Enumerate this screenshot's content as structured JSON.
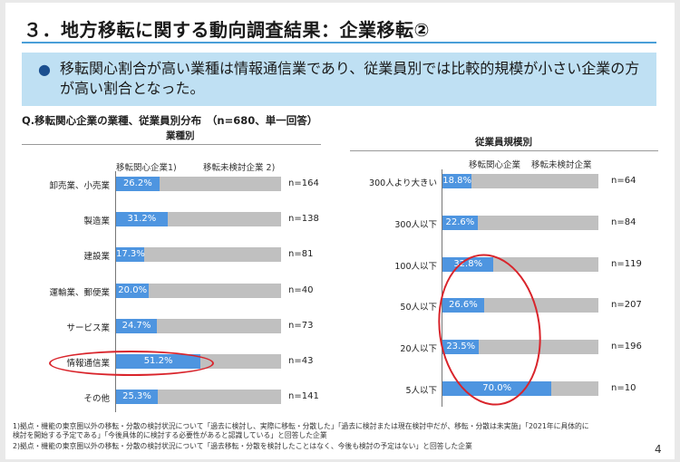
{
  "slide": {
    "title": "３．地方移転に関する動向調査結果：企業移転②",
    "summary_bullet": "●",
    "summary": "移転関心割合が高い業種は情報通信業であり、従業員別では比較的規模が小さい企業の方が高い割合となった。",
    "question": "Q.移転関心企業の業種、従業員別分布　（n=680、単一回答）",
    "footnote1a": "1)拠点・機能の東京圏以外の移転・分散の検討状況について「過去に検討し、実際に移転・分散した」「過去に検討または現在検討中だが、移転・分散は未実施」「2021年に具体的に",
    "footnote1b": "検討を開始する予定である」「今後具体的に検討する必要性があると認識している」と回答した企業",
    "footnote2": "2)拠点・機能の東京圏以外の移転・分散の検討状況について「過去移転・分散を検討したことはなく、今後も検討の予定はない」と回答した企業",
    "page_number": "4"
  },
  "colors": {
    "interested": "#4e95e0",
    "not_considered": "#c0c0c0",
    "highlight": "#d9242b"
  },
  "chart_data": [
    {
      "type": "bar",
      "stacked": "100%",
      "orientation": "horizontal",
      "title": "業種別",
      "legend": [
        "移転関心企業1)",
        "移転未検討企業 2)"
      ],
      "categories": [
        "卸売業、小売業",
        "製造業",
        "建設業",
        "運輸業、郵便業",
        "サービス業",
        "情報通信業",
        "その他"
      ],
      "series": [
        {
          "name": "移転関心企業1)",
          "values": [
            26.2,
            31.2,
            17.3,
            20.0,
            24.7,
            51.2,
            25.3
          ]
        },
        {
          "name": "移転未検討企業 2)",
          "values": [
            73.8,
            68.8,
            82.7,
            80.0,
            75.3,
            48.8,
            74.7
          ]
        }
      ],
      "value_labels": [
        "26.2%",
        "31.2%",
        "17.3%",
        "20.0%",
        "24.7%",
        "51.2%",
        "25.3%"
      ],
      "n_labels": [
        "n=164",
        "n=138",
        "n=81",
        "n=40",
        "n=73",
        "n=43",
        "n=141"
      ],
      "highlighted": [
        "情報通信業"
      ],
      "xlim": [
        0,
        100
      ]
    },
    {
      "type": "bar",
      "stacked": "100%",
      "orientation": "horizontal",
      "title": "従業員規模別",
      "legend": [
        "移転関心企業",
        "移転未検討企業"
      ],
      "categories": [
        "300人より大きい",
        "300人以下",
        "100人以下",
        "50人以下",
        "20人以下",
        "5人以下"
      ],
      "series": [
        {
          "name": "移転関心企業",
          "values": [
            18.8,
            22.6,
            32.8,
            26.6,
            23.5,
            70.0
          ]
        },
        {
          "name": "移転未検討企業",
          "values": [
            81.2,
            77.4,
            67.2,
            73.4,
            76.5,
            30.0
          ]
        }
      ],
      "value_labels": [
        "18.8%",
        "22.6%",
        "32.8%",
        "26.6%",
        "23.5%",
        "70.0%"
      ],
      "n_labels": [
        "n=64",
        "n=84",
        "n=119",
        "n=207",
        "n=196",
        "n=10"
      ],
      "highlighted": [
        "100人以下",
        "50人以下",
        "20人以下",
        "5人以下"
      ],
      "xlim": [
        0,
        100
      ]
    }
  ]
}
